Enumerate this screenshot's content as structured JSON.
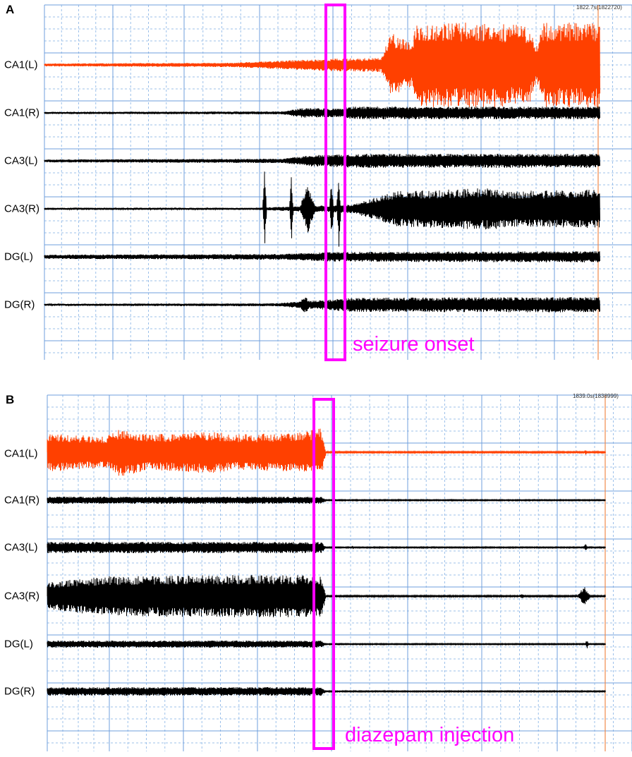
{
  "panel_a": {
    "letter": "A",
    "timestamp": "1822.7s(1822720)",
    "annotation": "seizure onset"
  },
  "panel_b": {
    "letter": "B",
    "timestamp": "1839.0s(1838999)",
    "annotation": "diazepam injection"
  },
  "colors": {
    "highlight": "#ff00ff",
    "trace_ca1_left": "#ff4000",
    "trace_default": "#000000",
    "grid_major": "#6f9fdc",
    "grid_minor": "#9cc0ea",
    "cursor": "#f08a4b"
  },
  "chart_data": [
    {
      "type": "line",
      "title": "",
      "channels": [
        "CA1(L)",
        "CA1(R)",
        "CA3(L)",
        "CA3(R)",
        "DG(L)",
        "DG(R)"
      ],
      "highlight_label": "seizure onset"
    },
    {
      "type": "line",
      "title": "",
      "channels": [
        "CA1(L)",
        "CA1(R)",
        "CA3(L)",
        "CA3(R)",
        "DG(L)",
        "DG(R)"
      ],
      "highlight_label": "diazepam injection"
    }
  ]
}
